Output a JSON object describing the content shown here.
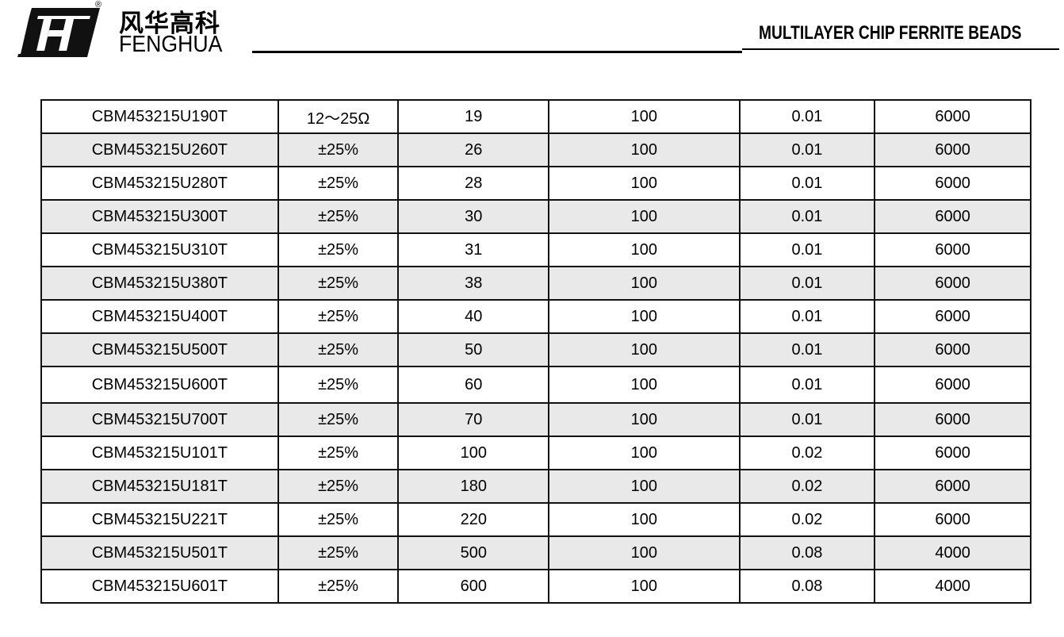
{
  "header": {
    "logo_cn": "风华高科",
    "logo_en": "FENGHUA",
    "registered": "®",
    "title": "MULTILAYER CHIP FERRITE BEADS"
  },
  "rows": [
    [
      "CBM453215U190T",
      "12～25Ω",
      "19",
      "100",
      "0.01",
      "6000"
    ],
    [
      "CBM453215U260T",
      "±25%",
      "26",
      "100",
      "0.01",
      "6000"
    ],
    [
      "CBM453215U280T",
      "±25%",
      "28",
      "100",
      "0.01",
      "6000"
    ],
    [
      "CBM453215U300T",
      "±25%",
      "30",
      "100",
      "0.01",
      "6000"
    ],
    [
      "CBM453215U310T",
      "±25%",
      "31",
      "100",
      "0.01",
      "6000"
    ],
    [
      "CBM453215U380T",
      "±25%",
      "38",
      "100",
      "0.01",
      "6000"
    ],
    [
      "CBM453215U400T",
      "±25%",
      "40",
      "100",
      "0.01",
      "6000"
    ],
    [
      "CBM453215U500T",
      "±25%",
      "50",
      "100",
      "0.01",
      "6000"
    ],
    [
      "CBM453215U600T",
      "±25%",
      "60",
      "100",
      "0.01",
      "6000"
    ],
    [
      "CBM453215U700T",
      "±25%",
      "70",
      "100",
      "0.01",
      "6000"
    ],
    [
      "CBM453215U101T",
      "±25%",
      "100",
      "100",
      "0.02",
      "6000"
    ],
    [
      "CBM453215U181T",
      "±25%",
      "180",
      "100",
      "0.02",
      "6000"
    ],
    [
      "CBM453215U221T",
      "±25%",
      "220",
      "100",
      "0.02",
      "6000"
    ],
    [
      "CBM453215U501T",
      "±25%",
      "500",
      "100",
      "0.08",
      "4000"
    ],
    [
      "CBM453215U601T",
      "±25%",
      "600",
      "100",
      "0.08",
      "4000"
    ]
  ]
}
